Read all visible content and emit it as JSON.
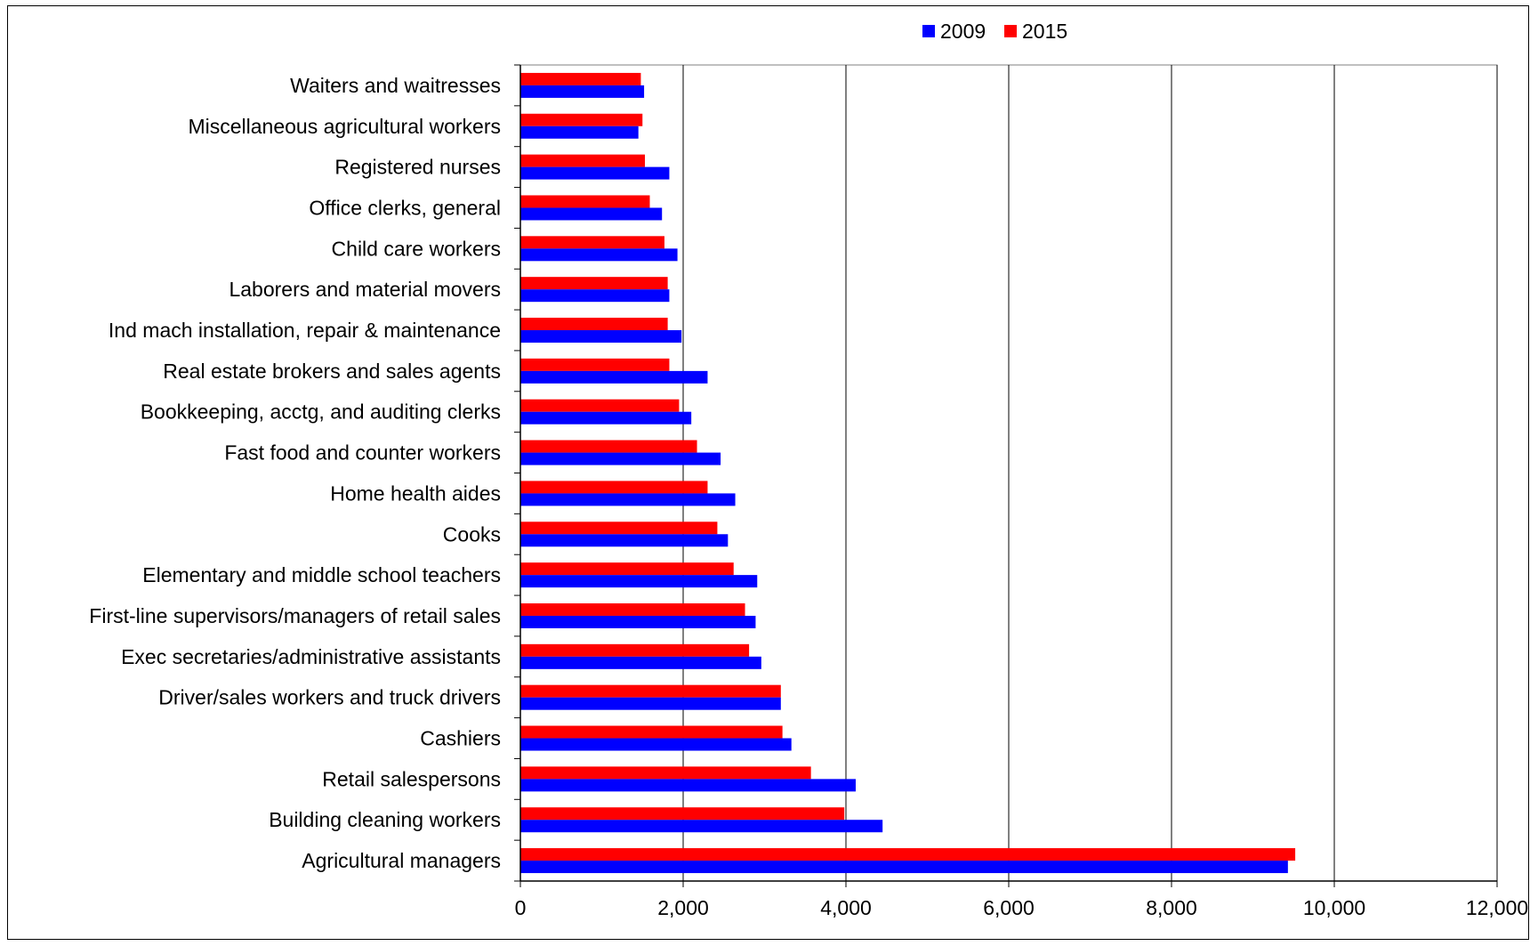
{
  "chart_data": {
    "type": "bar",
    "orientation": "horizontal",
    "title": "",
    "xlabel": "",
    "ylabel": "",
    "xlim": [
      0,
      12000
    ],
    "x_ticks": [
      0,
      2000,
      4000,
      6000,
      8000,
      10000,
      12000
    ],
    "x_tick_labels": [
      "0",
      "2,000",
      "4,000",
      "6,000",
      "8,000",
      "10,000",
      "12,000"
    ],
    "grid": "vertical",
    "legend_position": "top",
    "categories": [
      "Waiters and waitresses",
      "Miscellaneous agricultural workers",
      "Registered nurses",
      "Office clerks, general",
      "Child care workers",
      "Laborers and material movers",
      "Ind mach installation, repair & maintenance",
      "Real estate brokers and sales agents",
      "Bookkeeping, acctg, and auditing clerks",
      "Fast food and counter workers",
      "Home health aides",
      "Cooks",
      "Elementary and middle school teachers",
      "First-line supervisors/managers of retail sales",
      "Exec secretaries/administrative assistants",
      "Driver/sales workers and truck drivers",
      "Cashiers",
      "Retail salespersons",
      "Building cleaning workers",
      "Agricultural managers"
    ],
    "series": [
      {
        "name": "2009",
        "color": "#0000ff",
        "values": [
          1520,
          1450,
          1830,
          1740,
          1930,
          1830,
          1980,
          2300,
          2100,
          2460,
          2640,
          2550,
          2910,
          2890,
          2960,
          3200,
          3330,
          4120,
          4450,
          9430
        ]
      },
      {
        "name": "2015",
        "color": "#ff0000",
        "values": [
          1480,
          1500,
          1530,
          1590,
          1770,
          1810,
          1810,
          1830,
          1950,
          2170,
          2300,
          2420,
          2620,
          2760,
          2810,
          3200,
          3220,
          3570,
          3980,
          9520
        ]
      }
    ]
  }
}
